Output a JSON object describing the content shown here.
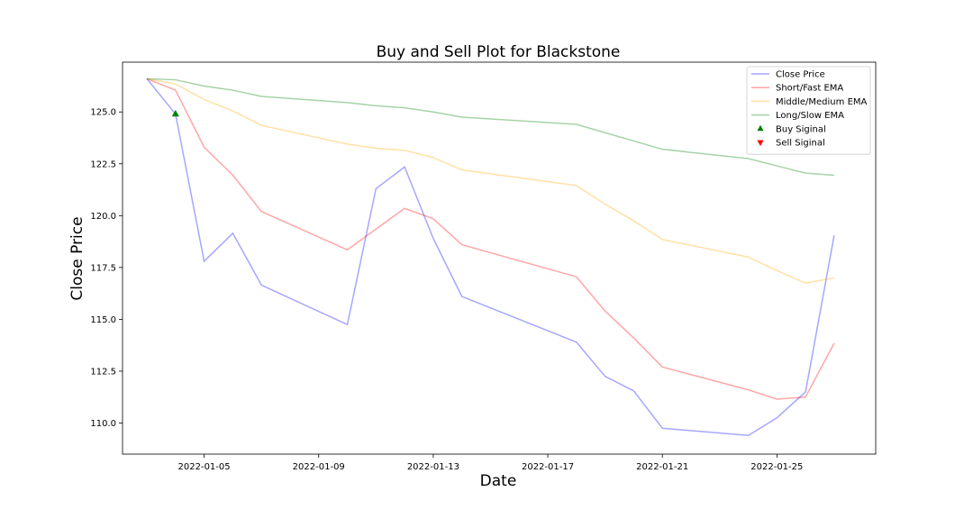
{
  "chart_data": {
    "type": "line",
    "title": "Buy and Sell Plot for Blackstone",
    "xlabel": "Date",
    "ylabel": "Close Price",
    "x": [
      "2022-01-03",
      "2022-01-04",
      "2022-01-05",
      "2022-01-06",
      "2022-01-07",
      "2022-01-10",
      "2022-01-11",
      "2022-01-12",
      "2022-01-13",
      "2022-01-14",
      "2022-01-18",
      "2022-01-19",
      "2022-01-20",
      "2022-01-21",
      "2022-01-24",
      "2022-01-25",
      "2022-01-26",
      "2022-01-27"
    ],
    "xlim": [
      "2022-01-02.15",
      "2022-01-28.45"
    ],
    "ylim": [
      108.5,
      127.4
    ],
    "x_ticks": [
      "2022-01-05",
      "2022-01-09",
      "2022-01-13",
      "2022-01-17",
      "2022-01-21",
      "2022-01-25"
    ],
    "y_ticks": [
      110.0,
      112.5,
      115.0,
      117.5,
      120.0,
      122.5,
      125.0
    ],
    "y_tick_labels": [
      "110.0",
      "112.5",
      "115.0",
      "117.5",
      "120.0",
      "122.5",
      "125.0"
    ],
    "grid": false,
    "legend_position": "top-right",
    "series": [
      {
        "name": "Close Price",
        "color": "#0000ff",
        "values": [
          126.6,
          124.9,
          117.8,
          119.15,
          116.65,
          114.75,
          121.3,
          122.35,
          118.9,
          116.1,
          113.9,
          112.25,
          111.55,
          109.75,
          109.4,
          110.25,
          111.5,
          119.05
        ]
      },
      {
        "name": "Short/Fast EMA",
        "color": "#ff0000",
        "values": [
          126.6,
          126.05,
          123.3,
          121.95,
          120.2,
          118.35,
          119.35,
          120.35,
          119.85,
          118.6,
          117.05,
          115.4,
          114.1,
          112.7,
          111.6,
          111.15,
          111.25,
          113.85
        ]
      },
      {
        "name": "Middle/Medium EMA",
        "color": "#ffa500",
        "values": [
          126.6,
          126.35,
          125.6,
          125.05,
          124.35,
          123.45,
          123.25,
          123.15,
          122.8,
          122.2,
          121.45,
          120.55,
          119.75,
          118.85,
          118.0,
          117.35,
          116.75,
          117.0
        ]
      },
      {
        "name": "Long/Slow EMA",
        "color": "#008000",
        "values": [
          126.6,
          126.55,
          126.25,
          126.05,
          125.75,
          125.45,
          125.3,
          125.2,
          125.0,
          124.75,
          124.4,
          124.0,
          123.6,
          123.2,
          122.75,
          122.4,
          122.05,
          121.95
        ]
      }
    ],
    "markers": [
      {
        "name": "Buy Siginal",
        "color": "#008000",
        "shape": "triangle-up",
        "points": [
          {
            "x": "2022-01-04",
            "y": 124.9
          }
        ]
      },
      {
        "name": "Sell Siginal",
        "color": "#ff0000",
        "shape": "triangle-down",
        "points": []
      }
    ]
  }
}
